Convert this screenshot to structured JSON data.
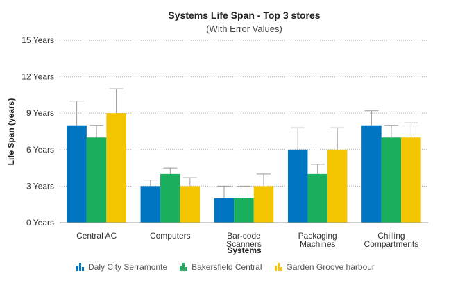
{
  "chart_data": {
    "type": "bar",
    "title": "Systems Life Span - Top 3 stores",
    "subtitle": "(With Error Values)",
    "xlabel": "Systems",
    "ylabel": "Life Span (years)",
    "ylim": [
      0,
      15
    ],
    "yticks": [
      0,
      3,
      6,
      9,
      12,
      15
    ],
    "ytick_labels": [
      "0 Years",
      "3 Years",
      "6 Years",
      "9 Years",
      "12 Years",
      "15 Years"
    ],
    "grid": true,
    "legend": "bottom",
    "categories": [
      [
        "Central AC"
      ],
      [
        "Computers"
      ],
      [
        "Bar-code",
        "Scanners"
      ],
      [
        "Packaging",
        "Machines"
      ],
      [
        "Chilling",
        "Compartments"
      ]
    ],
    "series": [
      {
        "name": "Daly City Serramonte",
        "color": "#0075c2",
        "values": [
          8,
          3,
          2,
          6,
          8
        ],
        "errors": [
          2,
          0.5,
          1,
          1.8,
          1.2
        ]
      },
      {
        "name": "Bakersfield Central",
        "color": "#1aaf5d",
        "values": [
          7,
          4,
          2,
          4,
          7
        ],
        "errors": [
          1,
          0.5,
          1,
          0.8,
          1
        ]
      },
      {
        "name": "Garden Groove harbour",
        "color": "#f2c500",
        "values": [
          9,
          3,
          3,
          6,
          7
        ],
        "errors": [
          2,
          0.7,
          1,
          1.8,
          1.2
        ]
      }
    ]
  }
}
